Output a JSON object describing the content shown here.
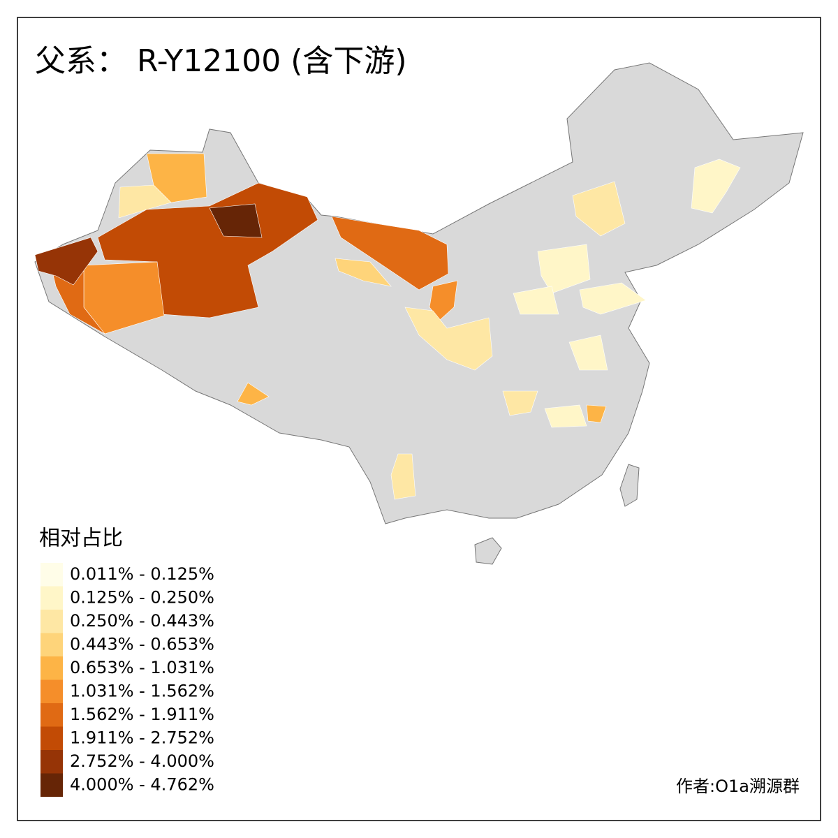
{
  "title": "父系： R-Y12100 (含下游)",
  "legend": {
    "title": "相对占比",
    "items": [
      {
        "label": "0.011% - 0.125%",
        "color": "#fffde8"
      },
      {
        "label": "0.125% - 0.250%",
        "color": "#fff6c8"
      },
      {
        "label": "0.250% - 0.443%",
        "color": "#fee7a4"
      },
      {
        "label": "0.443% - 0.653%",
        "color": "#fed47a"
      },
      {
        "label": "0.653% - 1.031%",
        "color": "#fdb446"
      },
      {
        "label": "1.031% - 1.562%",
        "color": "#f58e2a"
      },
      {
        "label": "1.562% - 1.911%",
        "color": "#e06a14"
      },
      {
        "label": "1.911% - 2.752%",
        "color": "#c24b05"
      },
      {
        "label": "2.752% - 4.000%",
        "color": "#963406"
      },
      {
        "label": "4.000% - 4.762%",
        "color": "#662506"
      }
    ]
  },
  "credit": "作者:O1a溯源群"
}
